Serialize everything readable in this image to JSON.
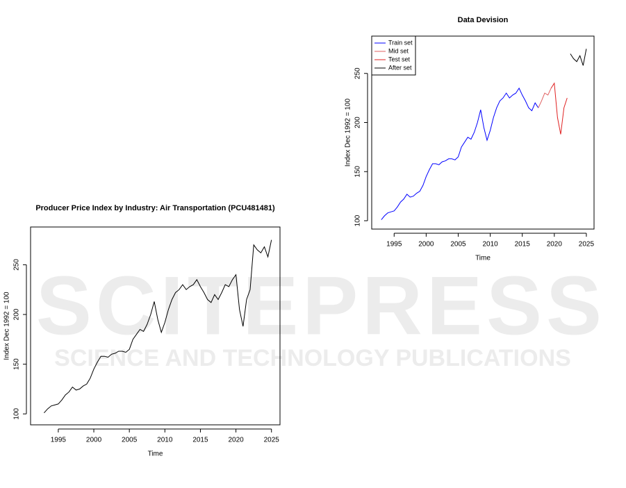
{
  "watermark": {
    "title": "SCITEPRESS",
    "subtitle": "SCIENCE AND TECHNOLOGY PUBLICATIONS"
  },
  "chart_data": [
    {
      "type": "line",
      "title": "Producer Price Index by Industry: Air Transportation (PCU481481)",
      "x_label": "Time",
      "y_label": "Index Dec 1992 = 100",
      "x": [
        1993,
        1993.5,
        1994,
        1994.5,
        1995,
        1995.5,
        1996,
        1996.5,
        1997,
        1997.5,
        1998,
        1998.5,
        1999,
        1999.5,
        2000,
        2000.5,
        2001,
        2001.5,
        2002,
        2002.5,
        2003,
        2003.5,
        2004,
        2004.5,
        2005,
        2005.5,
        2006,
        2006.5,
        2007,
        2007.5,
        2008,
        2008.5,
        2009,
        2009.5,
        2010,
        2010.5,
        2011,
        2011.5,
        2012,
        2012.5,
        2013,
        2013.5,
        2014,
        2014.5,
        2015,
        2015.5,
        2016,
        2016.5,
        2017,
        2017.5,
        2018,
        2018.5,
        2019,
        2019.5,
        2020,
        2020.5,
        2021,
        2021.5,
        2022,
        2022.5,
        2023,
        2023.5,
        2024,
        2024.5,
        2025
      ],
      "values": [
        101,
        105,
        108,
        109,
        110,
        114,
        119,
        122,
        127,
        124,
        125,
        128,
        130,
        136,
        145,
        152,
        158,
        158,
        157,
        160,
        161,
        163,
        163,
        162,
        165,
        175,
        180,
        185,
        183,
        190,
        200,
        213,
        195,
        182,
        192,
        205,
        215,
        222,
        225,
        230,
        225,
        228,
        230,
        235,
        228,
        222,
        215,
        212,
        220,
        215,
        222,
        230,
        228,
        235,
        240,
        205,
        188,
        215,
        225,
        270,
        265,
        262,
        268,
        258,
        275
      ],
      "color": "#000000",
      "xlim": [
        1991.1,
        2026.2
      ],
      "xticks": [
        1995,
        2000,
        2005,
        2010,
        2015,
        2020,
        2025
      ],
      "ylim": [
        89,
        288
      ],
      "yticks": [
        100,
        150,
        200,
        250
      ]
    },
    {
      "type": "line",
      "title": "Data Devision",
      "x_label": "Time",
      "y_label": "Index Dec 1992 = 100",
      "x": [
        1993,
        1993.5,
        1994,
        1994.5,
        1995,
        1995.5,
        1996,
        1996.5,
        1997,
        1997.5,
        1998,
        1998.5,
        1999,
        1999.5,
        2000,
        2000.5,
        2001,
        2001.5,
        2002,
        2002.5,
        2003,
        2003.5,
        2004,
        2004.5,
        2005,
        2005.5,
        2006,
        2006.5,
        2007,
        2007.5,
        2008,
        2008.5,
        2009,
        2009.5,
        2010,
        2010.5,
        2011,
        2011.5,
        2012,
        2012.5,
        2013,
        2013.5,
        2014,
        2014.5,
        2015,
        2015.5,
        2016,
        2016.5,
        2017,
        2017.5,
        2018,
        2018.5,
        2019,
        2019.5,
        2020,
        2020.5,
        2021,
        2021.5,
        2022,
        2022.5,
        2023,
        2023.5,
        2024,
        2024.5,
        2025
      ],
      "series": [
        {
          "name": "Train set",
          "color": "#0000ff",
          "values": [
            101,
            105,
            108,
            109,
            110,
            114,
            119,
            122,
            127,
            124,
            125,
            128,
            130,
            136,
            145,
            152,
            158,
            158,
            157,
            160,
            161,
            163,
            163,
            162,
            165,
            175,
            180,
            185,
            183,
            190,
            200,
            213,
            195,
            182,
            192,
            205,
            215,
            222,
            225,
            230,
            225,
            228,
            230,
            235,
            228,
            222,
            215,
            212,
            220,
            215,
            null,
            null,
            null,
            null,
            null,
            null,
            null,
            null,
            null,
            null,
            null,
            null,
            null,
            null,
            null
          ]
        },
        {
          "name": "Mid set",
          "color": "#e06060",
          "values": [
            null,
            null,
            null,
            null,
            null,
            null,
            null,
            null,
            null,
            null,
            null,
            null,
            null,
            null,
            null,
            null,
            null,
            null,
            null,
            null,
            null,
            null,
            null,
            null,
            null,
            null,
            null,
            null,
            null,
            null,
            null,
            null,
            null,
            null,
            null,
            null,
            null,
            null,
            null,
            null,
            null,
            null,
            null,
            null,
            null,
            null,
            null,
            null,
            null,
            215,
            222,
            230,
            228,
            235,
            null,
            null,
            null,
            null,
            null,
            null,
            null,
            null,
            null,
            null,
            null
          ]
        },
        {
          "name": "Test set",
          "color": "#e02020",
          "values": [
            null,
            null,
            null,
            null,
            null,
            null,
            null,
            null,
            null,
            null,
            null,
            null,
            null,
            null,
            null,
            null,
            null,
            null,
            null,
            null,
            null,
            null,
            null,
            null,
            null,
            null,
            null,
            null,
            null,
            null,
            null,
            null,
            null,
            null,
            null,
            null,
            null,
            null,
            null,
            null,
            null,
            null,
            null,
            null,
            null,
            null,
            null,
            null,
            null,
            null,
            null,
            null,
            null,
            235,
            240,
            205,
            188,
            215,
            225,
            null,
            null,
            null,
            null,
            null,
            null
          ]
        },
        {
          "name": "After set",
          "color": "#000000",
          "values": [
            null,
            null,
            null,
            null,
            null,
            null,
            null,
            null,
            null,
            null,
            null,
            null,
            null,
            null,
            null,
            null,
            null,
            null,
            null,
            null,
            null,
            null,
            null,
            null,
            null,
            null,
            null,
            null,
            null,
            null,
            null,
            null,
            null,
            null,
            null,
            null,
            null,
            null,
            null,
            null,
            null,
            null,
            null,
            null,
            null,
            null,
            null,
            null,
            null,
            null,
            null,
            null,
            null,
            null,
            null,
            null,
            null,
            null,
            null,
            270,
            265,
            262,
            268,
            258,
            275
          ]
        }
      ],
      "legend": "top-left",
      "xlim": [
        1991.5,
        2026.2
      ],
      "xticks": [
        1995,
        2000,
        2005,
        2010,
        2015,
        2020,
        2025
      ],
      "ylim": [
        91.5,
        288
      ],
      "yticks": [
        100,
        150,
        200,
        250
      ]
    }
  ]
}
